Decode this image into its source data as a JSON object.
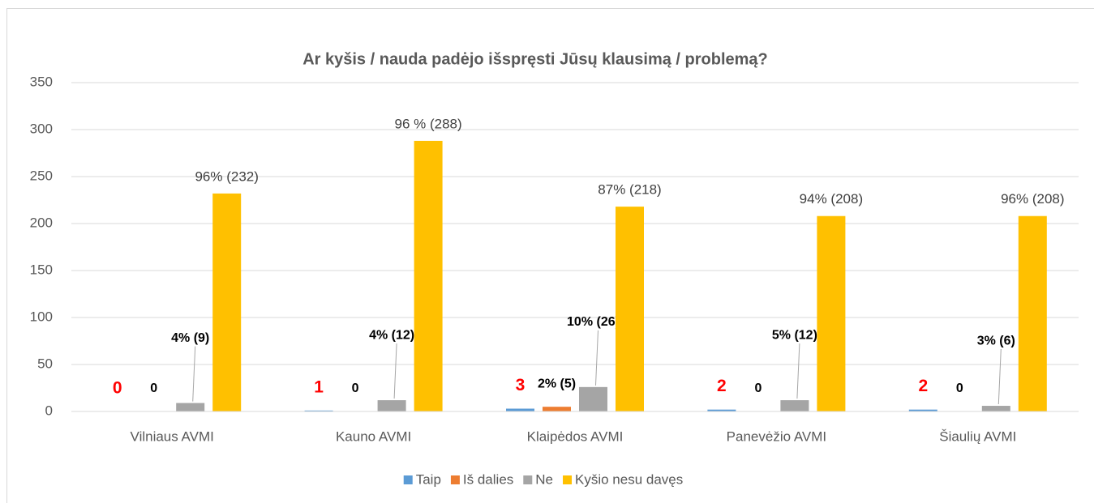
{
  "chart_data": {
    "type": "bar",
    "title": "Ar kyšis / nauda padėjo išspręsti Jūsų klausimą / problemą?",
    "categories": [
      "Vilniaus AVMI",
      "Kauno AVMI",
      "Klaipėdos AVMI",
      "Panevėžio AVMI",
      "Šiaulių AVMI"
    ],
    "series": [
      {
        "name": "Taip",
        "color": "#5b9bd5",
        "values": [
          0,
          1,
          3,
          2,
          2
        ],
        "value_labels": [
          "0",
          "1",
          "3",
          "2",
          "2"
        ]
      },
      {
        "name": "Iš dalies",
        "color": "#ed7d31",
        "values": [
          0,
          0,
          5,
          0,
          0
        ],
        "value_labels": [
          "0",
          "0",
          "2% (5)",
          "0",
          "0"
        ]
      },
      {
        "name": "Ne",
        "color": "#a5a5a5",
        "values": [
          9,
          12,
          26,
          12,
          6
        ],
        "value_labels": [
          "4% (9)",
          "4% (12)",
          "10% (26)",
          "5% (12)",
          "3% (6)"
        ]
      },
      {
        "name": "Kyšio nesu davęs",
        "color": "#ffc000",
        "values": [
          232,
          288,
          218,
          208,
          208
        ],
        "value_labels": [
          "96% (232)",
          "96 % (288)",
          "87% (218)",
          "94% (208)",
          "96% (208)"
        ]
      }
    ],
    "ylim": [
      0,
      350
    ],
    "yticks": [
      0,
      50,
      100,
      150,
      200,
      250,
      300,
      350
    ],
    "grid": true,
    "legend": "bottom"
  }
}
